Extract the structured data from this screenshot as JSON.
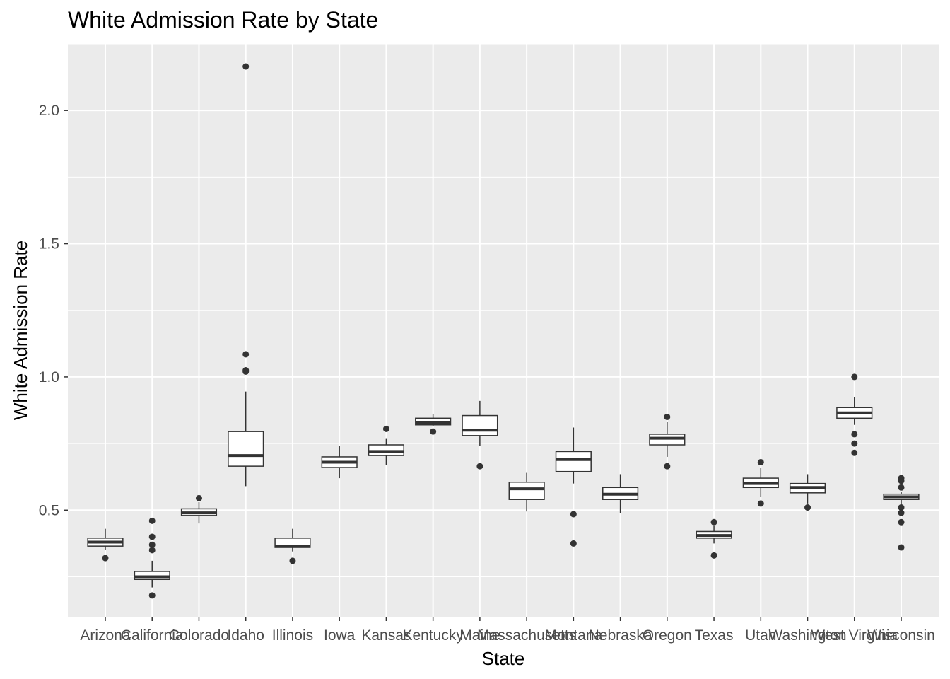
{
  "chart_data": {
    "type": "boxplot",
    "title": "White Admission Rate by State",
    "xlabel": "State",
    "ylabel": "White Admission Rate",
    "ylim": [
      0.1,
      2.25
    ],
    "yticks": [
      0.5,
      1.0,
      1.5,
      2.0
    ],
    "ytick_labels": [
      "0.5",
      "1.0",
      "1.5",
      "2.0"
    ],
    "grid": true,
    "legend": "none",
    "categories": [
      "Arizona",
      "California",
      "Colorado",
      "Idaho",
      "Illinois",
      "Iowa",
      "Kansas",
      "Kentucky",
      "Maine",
      "Massachusetts",
      "Montana",
      "Nebraska",
      "Oregon",
      "Texas",
      "Utah",
      "Washington",
      "West Virginia",
      "Wisconsin"
    ],
    "boxes": [
      {
        "name": "Arizona",
        "lower_whisker": 0.35,
        "q1": 0.365,
        "median": 0.38,
        "q3": 0.395,
        "upper_whisker": 0.43,
        "outliers": [
          0.32
        ]
      },
      {
        "name": "California",
        "lower_whisker": 0.21,
        "q1": 0.24,
        "median": 0.25,
        "q3": 0.27,
        "upper_whisker": 0.31,
        "outliers": [
          0.46,
          0.4,
          0.37,
          0.35,
          0.18
        ]
      },
      {
        "name": "Colorado",
        "lower_whisker": 0.45,
        "q1": 0.48,
        "median": 0.49,
        "q3": 0.505,
        "upper_whisker": 0.53,
        "outliers": [
          0.545
        ]
      },
      {
        "name": "Idaho",
        "lower_whisker": 0.59,
        "q1": 0.665,
        "median": 0.705,
        "q3": 0.795,
        "upper_whisker": 0.945,
        "outliers": [
          2.165,
          1.085,
          1.025,
          1.02
        ]
      },
      {
        "name": "Illinois",
        "lower_whisker": 0.345,
        "q1": 0.36,
        "median": 0.365,
        "q3": 0.395,
        "upper_whisker": 0.43,
        "outliers": [
          0.31
        ]
      },
      {
        "name": "Iowa",
        "lower_whisker": 0.62,
        "q1": 0.66,
        "median": 0.68,
        "q3": 0.7,
        "upper_whisker": 0.74,
        "outliers": []
      },
      {
        "name": "Kansas",
        "lower_whisker": 0.67,
        "q1": 0.705,
        "median": 0.72,
        "q3": 0.745,
        "upper_whisker": 0.77,
        "outliers": [
          0.805
        ]
      },
      {
        "name": "Kentucky",
        "lower_whisker": 0.815,
        "q1": 0.82,
        "median": 0.83,
        "q3": 0.845,
        "upper_whisker": 0.86,
        "outliers": [
          0.795
        ]
      },
      {
        "name": "Maine",
        "lower_whisker": 0.74,
        "q1": 0.78,
        "median": 0.8,
        "q3": 0.855,
        "upper_whisker": 0.91,
        "outliers": [
          0.665
        ]
      },
      {
        "name": "Massachusetts",
        "lower_whisker": 0.495,
        "q1": 0.54,
        "median": 0.58,
        "q3": 0.605,
        "upper_whisker": 0.64,
        "outliers": []
      },
      {
        "name": "Montana",
        "lower_whisker": 0.6,
        "q1": 0.645,
        "median": 0.69,
        "q3": 0.72,
        "upper_whisker": 0.81,
        "outliers": [
          0.485,
          0.375
        ]
      },
      {
        "name": "Nebraska",
        "lower_whisker": 0.49,
        "q1": 0.54,
        "median": 0.56,
        "q3": 0.585,
        "upper_whisker": 0.635,
        "outliers": []
      },
      {
        "name": "Oregon",
        "lower_whisker": 0.7,
        "q1": 0.745,
        "median": 0.77,
        "q3": 0.785,
        "upper_whisker": 0.83,
        "outliers": [
          0.85,
          0.665
        ]
      },
      {
        "name": "Texas",
        "lower_whisker": 0.375,
        "q1": 0.395,
        "median": 0.405,
        "q3": 0.42,
        "upper_whisker": 0.44,
        "outliers": [
          0.455,
          0.33
        ]
      },
      {
        "name": "Utah",
        "lower_whisker": 0.55,
        "q1": 0.585,
        "median": 0.6,
        "q3": 0.62,
        "upper_whisker": 0.66,
        "outliers": [
          0.68,
          0.525
        ]
      },
      {
        "name": "Washington",
        "lower_whisker": 0.525,
        "q1": 0.565,
        "median": 0.585,
        "q3": 0.6,
        "upper_whisker": 0.635,
        "outliers": [
          0.51
        ]
      },
      {
        "name": "West Virginia",
        "lower_whisker": 0.82,
        "q1": 0.845,
        "median": 0.865,
        "q3": 0.885,
        "upper_whisker": 0.925,
        "outliers": [
          1.0,
          0.785,
          0.75,
          0.715
        ]
      },
      {
        "name": "Wisconsin",
        "lower_whisker": 0.52,
        "q1": 0.54,
        "median": 0.55,
        "q3": 0.56,
        "upper_whisker": 0.57,
        "outliers": [
          0.62,
          0.61,
          0.585,
          0.51,
          0.49,
          0.455,
          0.36
        ]
      }
    ]
  },
  "colors": {
    "panel_bg": "#ebebeb",
    "grid_major": "#ffffff",
    "box_fill": "#ffffff",
    "box_stroke": "#333333",
    "text_tick": "#4d4d4d"
  }
}
